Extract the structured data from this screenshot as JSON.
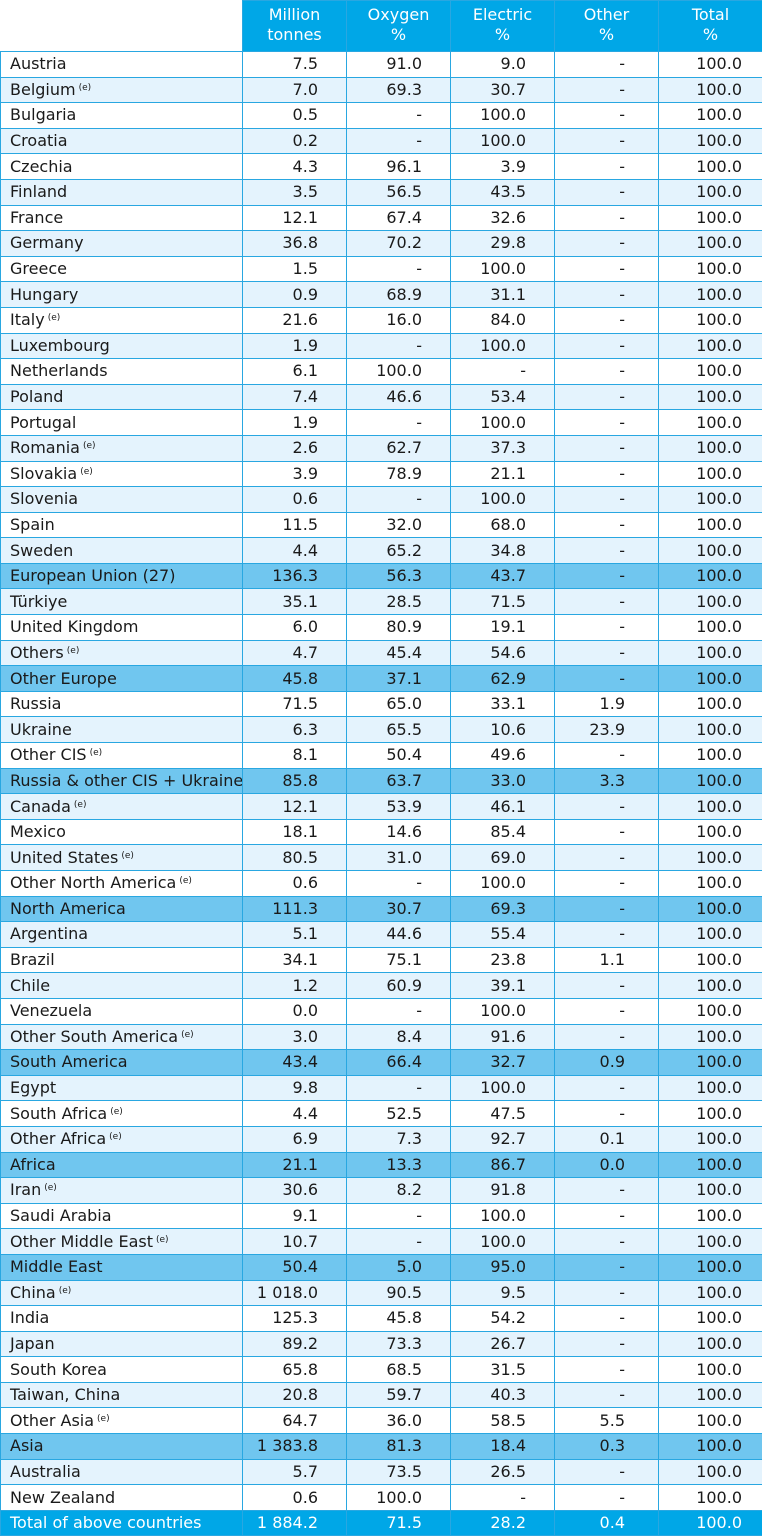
{
  "header": {
    "blank": "",
    "million": [
      "Million",
      "tonnes"
    ],
    "oxygen": [
      "Oxygen",
      "%"
    ],
    "electric": [
      "Electric",
      "%"
    ],
    "other": [
      "Other",
      "%"
    ],
    "total": [
      "Total",
      "%"
    ]
  },
  "rows": [
    {
      "name": "Austria",
      "note": "",
      "style": "w",
      "values": [
        "7.5",
        "91.0",
        "9.0",
        "-",
        "100.0"
      ]
    },
    {
      "name": "Belgium",
      "note": "(e)",
      "style": "l",
      "values": [
        "7.0",
        "69.3",
        "30.7",
        "-",
        "100.0"
      ]
    },
    {
      "name": "Bulgaria",
      "note": "",
      "style": "w",
      "values": [
        "0.5",
        "-",
        "100.0",
        "-",
        "100.0"
      ]
    },
    {
      "name": "Croatia",
      "note": "",
      "style": "l",
      "values": [
        "0.2",
        "-",
        "100.0",
        "-",
        "100.0"
      ]
    },
    {
      "name": "Czechia",
      "note": "",
      "style": "w",
      "values": [
        "4.3",
        "96.1",
        "3.9",
        "-",
        "100.0"
      ]
    },
    {
      "name": "Finland",
      "note": "",
      "style": "l",
      "values": [
        "3.5",
        "56.5",
        "43.5",
        "-",
        "100.0"
      ]
    },
    {
      "name": "France",
      "note": "",
      "style": "w",
      "values": [
        "12.1",
        "67.4",
        "32.6",
        "-",
        "100.0"
      ]
    },
    {
      "name": "Germany",
      "note": "",
      "style": "l",
      "values": [
        "36.8",
        "70.2",
        "29.8",
        "-",
        "100.0"
      ]
    },
    {
      "name": "Greece",
      "note": "",
      "style": "w",
      "values": [
        "1.5",
        "-",
        "100.0",
        "-",
        "100.0"
      ]
    },
    {
      "name": "Hungary",
      "note": "",
      "style": "l",
      "values": [
        "0.9",
        "68.9",
        "31.1",
        "-",
        "100.0"
      ]
    },
    {
      "name": "Italy",
      "note": "(e)",
      "style": "w",
      "values": [
        "21.6",
        "16.0",
        "84.0",
        "-",
        "100.0"
      ]
    },
    {
      "name": "Luxembourg",
      "note": "",
      "style": "l",
      "values": [
        "1.9",
        "-",
        "100.0",
        "-",
        "100.0"
      ]
    },
    {
      "name": "Netherlands",
      "note": "",
      "style": "w",
      "values": [
        "6.1",
        "100.0",
        "-",
        "-",
        "100.0"
      ]
    },
    {
      "name": "Poland",
      "note": "",
      "style": "l",
      "values": [
        "7.4",
        "46.6",
        "53.4",
        "-",
        "100.0"
      ]
    },
    {
      "name": "Portugal",
      "note": "",
      "style": "w",
      "values": [
        "1.9",
        "-",
        "100.0",
        "-",
        "100.0"
      ]
    },
    {
      "name": "Romania",
      "note": "(e)",
      "style": "l",
      "values": [
        "2.6",
        "62.7",
        "37.3",
        "-",
        "100.0"
      ]
    },
    {
      "name": "Slovakia",
      "note": "(e)",
      "style": "w",
      "values": [
        "3.9",
        "78.9",
        "21.1",
        "-",
        "100.0"
      ]
    },
    {
      "name": "Slovenia",
      "note": "",
      "style": "l",
      "values": [
        "0.6",
        "-",
        "100.0",
        "-",
        "100.0"
      ]
    },
    {
      "name": "Spain",
      "note": "",
      "style": "w",
      "values": [
        "11.5",
        "32.0",
        "68.0",
        "-",
        "100.0"
      ]
    },
    {
      "name": "Sweden",
      "note": "",
      "style": "l",
      "values": [
        "4.4",
        "65.2",
        "34.8",
        "-",
        "100.0"
      ]
    },
    {
      "name": "European Union (27)",
      "note": "",
      "style": "s",
      "values": [
        "136.3",
        "56.3",
        "43.7",
        "-",
        "100.0"
      ]
    },
    {
      "name": "Türkiye",
      "note": "",
      "style": "l",
      "values": [
        "35.1",
        "28.5",
        "71.5",
        "-",
        "100.0"
      ]
    },
    {
      "name": "United Kingdom",
      "note": "",
      "style": "w",
      "values": [
        "6.0",
        "80.9",
        "19.1",
        "-",
        "100.0"
      ]
    },
    {
      "name": "Others",
      "note": "(e)",
      "style": "l",
      "values": [
        "4.7",
        "45.4",
        "54.6",
        "-",
        "100.0"
      ]
    },
    {
      "name": "Other Europe",
      "note": "",
      "style": "s",
      "values": [
        "45.8",
        "37.1",
        "62.9",
        "-",
        "100.0"
      ]
    },
    {
      "name": "Russia",
      "note": "",
      "style": "w",
      "values": [
        "71.5",
        "65.0",
        "33.1",
        "1.9",
        "100.0"
      ]
    },
    {
      "name": "Ukraine",
      "note": "",
      "style": "l",
      "values": [
        "6.3",
        "65.5",
        "10.6",
        "23.9",
        "100.0"
      ]
    },
    {
      "name": "Other CIS",
      "note": "(e)",
      "style": "w",
      "values": [
        "8.1",
        "50.4",
        "49.6",
        "-",
        "100.0"
      ]
    },
    {
      "name": "Russia & other CIS + Ukraine",
      "note": "",
      "style": "s",
      "values": [
        "85.8",
        "63.7",
        "33.0",
        "3.3",
        "100.0"
      ]
    },
    {
      "name": "Canada",
      "note": "(e)",
      "style": "l",
      "values": [
        "12.1",
        "53.9",
        "46.1",
        "-",
        "100.0"
      ]
    },
    {
      "name": "Mexico",
      "note": "",
      "style": "w",
      "values": [
        "18.1",
        "14.6",
        "85.4",
        "-",
        "100.0"
      ]
    },
    {
      "name": "United States",
      "note": "(e)",
      "style": "l",
      "values": [
        "80.5",
        "31.0",
        "69.0",
        "-",
        "100.0"
      ]
    },
    {
      "name": "Other North America",
      "note": "(e)",
      "style": "w",
      "values": [
        "0.6",
        "-",
        "100.0",
        "-",
        "100.0"
      ]
    },
    {
      "name": "North America",
      "note": "",
      "style": "s",
      "values": [
        "111.3",
        "30.7",
        "69.3",
        "-",
        "100.0"
      ]
    },
    {
      "name": "Argentina",
      "note": "",
      "style": "l",
      "values": [
        "5.1",
        "44.6",
        "55.4",
        "-",
        "100.0"
      ]
    },
    {
      "name": "Brazil",
      "note": "",
      "style": "w",
      "values": [
        "34.1",
        "75.1",
        "23.8",
        "1.1",
        "100.0"
      ]
    },
    {
      "name": "Chile",
      "note": "",
      "style": "l",
      "values": [
        "1.2",
        "60.9",
        "39.1",
        "-",
        "100.0"
      ]
    },
    {
      "name": "Venezuela",
      "note": "",
      "style": "w",
      "values": [
        "0.0",
        "-",
        "100.0",
        "-",
        "100.0"
      ]
    },
    {
      "name": "Other South America",
      "note": "(e)",
      "style": "l",
      "values": [
        "3.0",
        "8.4",
        "91.6",
        "-",
        "100.0"
      ]
    },
    {
      "name": "South America",
      "note": "",
      "style": "s",
      "values": [
        "43.4",
        "66.4",
        "32.7",
        "0.9",
        "100.0"
      ]
    },
    {
      "name": "Egypt",
      "note": "",
      "style": "l",
      "values": [
        "9.8",
        "-",
        "100.0",
        "-",
        "100.0"
      ]
    },
    {
      "name": "South Africa",
      "note": "(e)",
      "style": "w",
      "values": [
        "4.4",
        "52.5",
        "47.5",
        "-",
        "100.0"
      ]
    },
    {
      "name": "Other Africa",
      "note": "(e)",
      "style": "l",
      "values": [
        "6.9",
        "7.3",
        "92.7",
        "0.1",
        "100.0"
      ]
    },
    {
      "name": "Africa",
      "note": "",
      "style": "s",
      "values": [
        "21.1",
        "13.3",
        "86.7",
        "0.0",
        "100.0"
      ]
    },
    {
      "name": "Iran",
      "note": "(e)",
      "style": "l",
      "values": [
        "30.6",
        "8.2",
        "91.8",
        "-",
        "100.0"
      ]
    },
    {
      "name": "Saudi Arabia",
      "note": "",
      "style": "w",
      "values": [
        "9.1",
        "-",
        "100.0",
        "-",
        "100.0"
      ]
    },
    {
      "name": "Other Middle East",
      "note": "(e)",
      "style": "l",
      "values": [
        "10.7",
        "-",
        "100.0",
        "-",
        "100.0"
      ]
    },
    {
      "name": "Middle East",
      "note": "",
      "style": "s",
      "values": [
        "50.4",
        "5.0",
        "95.0",
        "-",
        "100.0"
      ]
    },
    {
      "name": "China",
      "note": "(e)",
      "style": "l",
      "values": [
        "1 018.0",
        "90.5",
        "9.5",
        "-",
        "100.0"
      ]
    },
    {
      "name": "India",
      "note": "",
      "style": "w",
      "values": [
        "125.3",
        "45.8",
        "54.2",
        "-",
        "100.0"
      ]
    },
    {
      "name": "Japan",
      "note": "",
      "style": "l",
      "values": [
        "89.2",
        "73.3",
        "26.7",
        "-",
        "100.0"
      ]
    },
    {
      "name": "South Korea",
      "note": "",
      "style": "w",
      "values": [
        "65.8",
        "68.5",
        "31.5",
        "-",
        "100.0"
      ]
    },
    {
      "name": "Taiwan, China",
      "note": "",
      "style": "l",
      "values": [
        "20.8",
        "59.7",
        "40.3",
        "-",
        "100.0"
      ]
    },
    {
      "name": "Other Asia",
      "note": "(e)",
      "style": "w",
      "values": [
        "64.7",
        "36.0",
        "58.5",
        "5.5",
        "100.0"
      ]
    },
    {
      "name": "Asia",
      "note": "",
      "style": "s",
      "values": [
        "1 383.8",
        "81.3",
        "18.4",
        "0.3",
        "100.0"
      ]
    },
    {
      "name": "Australia",
      "note": "",
      "style": "l",
      "values": [
        "5.7",
        "73.5",
        "26.5",
        "-",
        "100.0"
      ]
    },
    {
      "name": "New Zealand",
      "note": "",
      "style": "w",
      "values": [
        "0.6",
        "100.0",
        "-",
        "-",
        "100.0"
      ]
    },
    {
      "name": "Total of above countries",
      "note": "",
      "style": "t",
      "values": [
        "1 884.2",
        "71.5",
        "28.2",
        "0.4",
        "100.0"
      ]
    }
  ]
}
